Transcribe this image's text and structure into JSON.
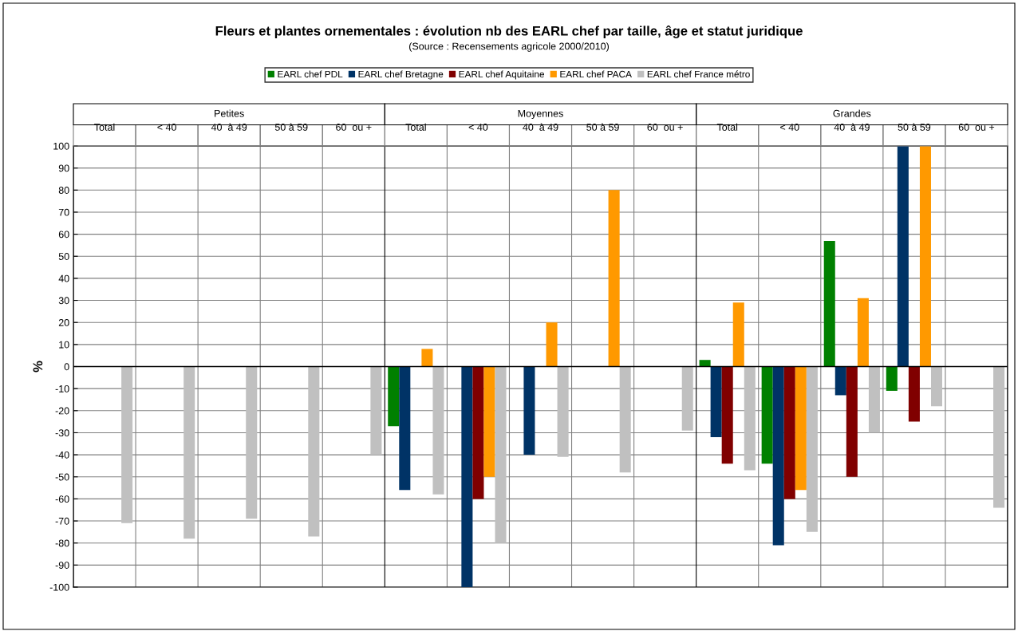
{
  "chart_data": {
    "type": "bar",
    "title": "Fleurs et plantes ornementales : évolution nb des EARL chef par taille, âge et statut juridique",
    "subtitle": "(Source : Recensements agricole 2000/2010)",
    "ylabel": "%",
    "categories": [
      "Total",
      "< 40",
      "40  à 49",
      "50 à 59",
      "60  ou +",
      "Total",
      "< 40",
      "40  à 49",
      "50 à 59",
      "60  ou +",
      "Total",
      "< 40",
      "40  à 49",
      "50 à 59",
      "60  ou +"
    ],
    "annotations": [
      "Petites",
      "Moyennes",
      "Grandes"
    ],
    "series": [
      {
        "name": "EARL chef PDL",
        "color": "#008000",
        "values": [
          null,
          null,
          null,
          null,
          null,
          -27,
          null,
          null,
          null,
          null,
          3,
          -44,
          57,
          -11,
          null
        ]
      },
      {
        "name": "EARL chef Bretagne",
        "color": "#003366",
        "values": [
          null,
          null,
          null,
          null,
          null,
          -56,
          -100,
          -40,
          null,
          null,
          -32,
          -81,
          -13,
          100,
          null
        ]
      },
      {
        "name": "EARL chef Aquitaine",
        "color": "#800000",
        "values": [
          null,
          null,
          null,
          null,
          null,
          null,
          -60,
          null,
          null,
          null,
          -44,
          -60,
          -50,
          -25,
          null
        ]
      },
      {
        "name": "EARL chef PACA",
        "color": "#ff9900",
        "values": [
          null,
          null,
          null,
          null,
          null,
          8,
          -50,
          20,
          80,
          null,
          29,
          -56,
          31,
          100,
          null
        ]
      },
      {
        "name": "EARL chef France métro",
        "color": "#c0c0c0",
        "values": [
          -71,
          -78,
          -69,
          -77,
          -40,
          -58,
          -80,
          -41,
          -48,
          -29,
          -47,
          -75,
          -30,
          -18,
          -64
        ]
      }
    ],
    "ylim": [
      -100,
      100
    ],
    "yticks": [
      -100,
      -90,
      -80,
      -70,
      -60,
      -50,
      -40,
      -30,
      -20,
      -10,
      0,
      10,
      20,
      30,
      40,
      50,
      60,
      70,
      80,
      90,
      100
    ],
    "grid": "y",
    "legend": "top"
  }
}
